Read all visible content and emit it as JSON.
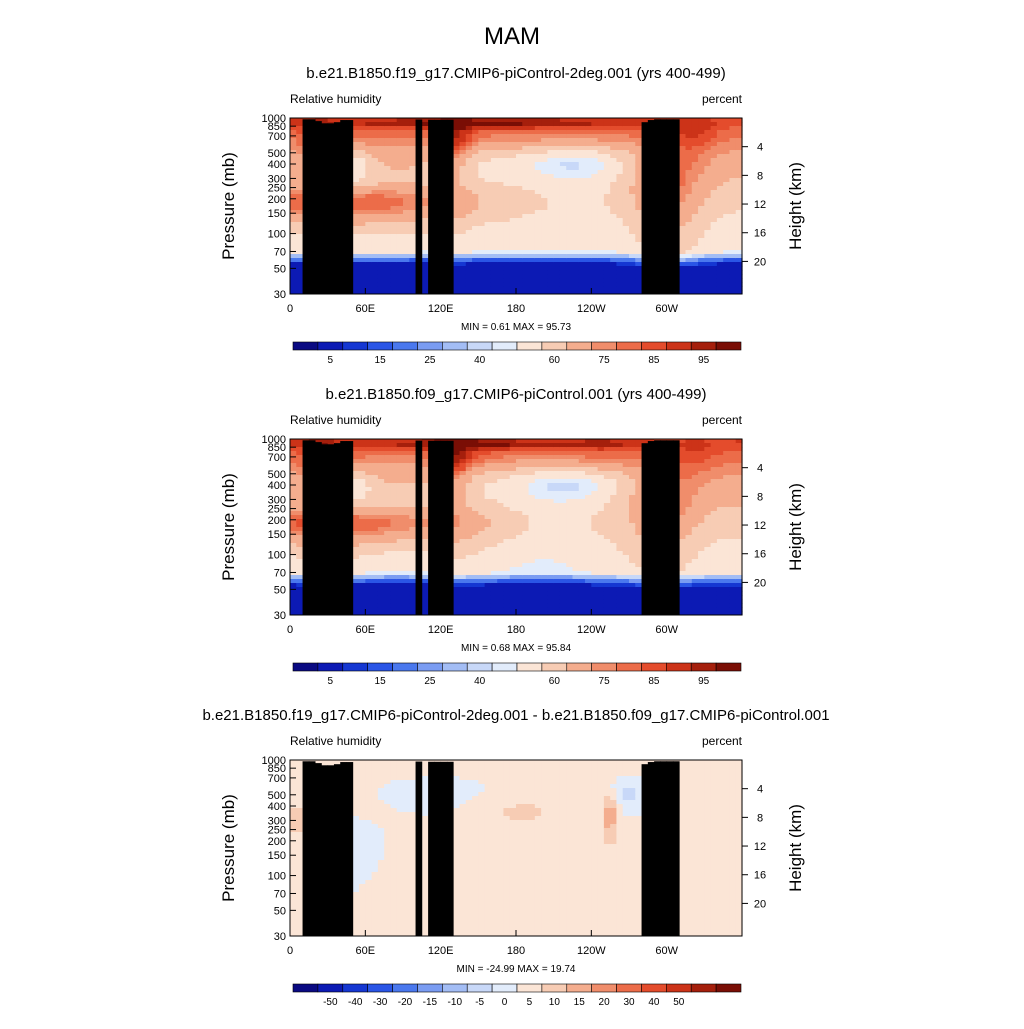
{
  "figure": {
    "main_title": "MAM"
  },
  "palettes": {
    "rh": [
      "#0a0a82",
      "#0c1ab4",
      "#1537d2",
      "#2a55e6",
      "#4a78ee",
      "#7a9cf2",
      "#a3bdf5",
      "#c8d8f8",
      "#e2ecfb",
      "#fbe5d6",
      "#f7ccb4",
      "#f4ad8e",
      "#f08d6b",
      "#ec6c49",
      "#e44c2c",
      "#cc3318",
      "#a51f0c",
      "#7a0e05"
    ],
    "diff": [
      "#0a0a82",
      "#0c1ab4",
      "#1537d2",
      "#2a55e6",
      "#4a78ee",
      "#7a9cf2",
      "#a3bdf5",
      "#c8d8f8",
      "#e2ecfb",
      "#fbe5d6",
      "#f7ccb4",
      "#f4ad8e",
      "#f08d6b",
      "#ec6c49",
      "#e44c2c",
      "#cc3318",
      "#a51f0c",
      "#7a0e05"
    ]
  },
  "chart_data": [
    {
      "type": "heatmap",
      "title": "b.e21.B1850.f19_g17.CMIP6-piControl-2deg.001 (yrs 400-499)",
      "variable_label": "Relative humidity",
      "units_label": "percent",
      "ylabel": "Pressure (mb)",
      "ylabel_right": "Height (km)",
      "x_tick_labels": [
        "0",
        "60E",
        "120E",
        "180",
        "120W",
        "60W"
      ],
      "x_tick_lons": [
        0,
        60,
        120,
        180,
        240,
        300
      ],
      "xlim": [
        0,
        360
      ],
      "y_tick_labels": [
        "1000",
        "850",
        "700",
        "500",
        "400",
        "300",
        "250",
        "200",
        "150",
        "100",
        "70",
        "50",
        "30"
      ],
      "y_tick_values": [
        1000,
        850,
        700,
        500,
        400,
        300,
        250,
        200,
        150,
        100,
        70,
        50,
        30
      ],
      "ylim": [
        1000,
        30
      ],
      "y_scale": "log",
      "height_tick_labels": [
        "4",
        "8",
        "12",
        "16",
        "20"
      ],
      "height_tick_km": [
        4,
        8,
        12,
        16,
        20
      ],
      "stats_text": "MIN =   0.61  MAX =  95.73",
      "min": 0.61,
      "max": 95.73,
      "colorbar_labels": [
        "5",
        "15",
        "25",
        "40",
        "60",
        "75",
        "85",
        "95"
      ],
      "colorbar_label_bounds": [
        1,
        3,
        5,
        7,
        10,
        12,
        14,
        16
      ],
      "palette": "rh",
      "grid": false,
      "legend": "bottom colorbar"
    },
    {
      "type": "heatmap",
      "title": "b.e21.B1850.f09_g17.CMIP6-piControl.001 (yrs 400-499)",
      "variable_label": "Relative humidity",
      "units_label": "percent",
      "ylabel": "Pressure (mb)",
      "ylabel_right": "Height (km)",
      "x_tick_labels": [
        "0",
        "60E",
        "120E",
        "180",
        "120W",
        "60W"
      ],
      "x_tick_lons": [
        0,
        60,
        120,
        180,
        240,
        300
      ],
      "xlim": [
        0,
        360
      ],
      "y_tick_labels": [
        "1000",
        "850",
        "700",
        "500",
        "400",
        "300",
        "250",
        "200",
        "150",
        "100",
        "70",
        "50",
        "30"
      ],
      "y_tick_values": [
        1000,
        850,
        700,
        500,
        400,
        300,
        250,
        200,
        150,
        100,
        70,
        50,
        30
      ],
      "ylim": [
        1000,
        30
      ],
      "y_scale": "log",
      "height_tick_labels": [
        "4",
        "8",
        "12",
        "16",
        "20"
      ],
      "height_tick_km": [
        4,
        8,
        12,
        16,
        20
      ],
      "stats_text": "MIN =   0.68  MAX =  95.84",
      "min": 0.68,
      "max": 95.84,
      "colorbar_labels": [
        "5",
        "15",
        "25",
        "40",
        "60",
        "75",
        "85",
        "95"
      ],
      "colorbar_label_bounds": [
        1,
        3,
        5,
        7,
        10,
        12,
        14,
        16
      ],
      "palette": "rh",
      "grid": false,
      "legend": "bottom colorbar"
    },
    {
      "type": "heatmap",
      "title": "b.e21.B1850.f19_g17.CMIP6-piControl-2deg.001 - b.e21.B1850.f09_g17.CMIP6-piControl.001",
      "variable_label": "Relative humidity",
      "units_label": "percent",
      "ylabel": "Pressure (mb)",
      "ylabel_right": "Height (km)",
      "x_tick_labels": [
        "0",
        "60E",
        "120E",
        "180",
        "120W",
        "60W"
      ],
      "x_tick_lons": [
        0,
        60,
        120,
        180,
        240,
        300
      ],
      "xlim": [
        0,
        360
      ],
      "y_tick_labels": [
        "1000",
        "850",
        "700",
        "500",
        "400",
        "300",
        "250",
        "200",
        "150",
        "100",
        "70",
        "50",
        "30"
      ],
      "y_tick_values": [
        1000,
        850,
        700,
        500,
        400,
        300,
        250,
        200,
        150,
        100,
        70,
        50,
        30
      ],
      "ylim": [
        1000,
        30
      ],
      "y_scale": "log",
      "height_tick_labels": [
        "4",
        "8",
        "12",
        "16",
        "20"
      ],
      "height_tick_km": [
        4,
        8,
        12,
        16,
        20
      ],
      "stats_text": "MIN = -24.99  MAX =  19.74",
      "min": -24.99,
      "max": 19.74,
      "colorbar_labels": [
        "-50",
        "-40",
        "-30",
        "-20",
        "-15",
        "-10",
        "-5",
        "0",
        "5",
        "10",
        "15",
        "20",
        "30",
        "40",
        "50"
      ],
      "colorbar_label_bounds": [
        1,
        2,
        3,
        4,
        5,
        6,
        7,
        8,
        9,
        10,
        11,
        12,
        13,
        14,
        15
      ],
      "palette": "diff",
      "grid": false,
      "legend": "bottom colorbar"
    }
  ]
}
